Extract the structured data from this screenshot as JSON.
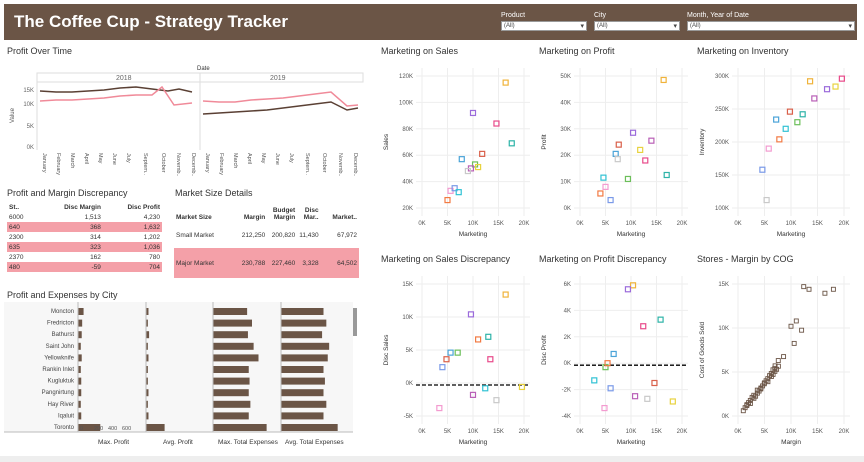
{
  "header": {
    "title": "The Coffee Cup - Strategy Tracker",
    "filters": [
      {
        "label": "Product",
        "value": "(All)"
      },
      {
        "label": "City",
        "value": "(All)"
      },
      {
        "label": "Month, Year of Date",
        "value": "(All)"
      }
    ]
  },
  "profit_over_time": {
    "title": "Profit Over Time",
    "column_header": "Date",
    "years": [
      "2018",
      "2019"
    ],
    "ylabel": "Value",
    "yticks": [
      "15K",
      "10K",
      "5K",
      "0K"
    ],
    "months": [
      "January",
      "February",
      "March",
      "April",
      "May",
      "June",
      "July",
      "Septem..",
      "October",
      "Novemb..",
      "Decemb.."
    ]
  },
  "discrepancy_table": {
    "title": "Profit and Margin Discrepancy",
    "headers": [
      "St..",
      "Disc Margin",
      "Disc Profit"
    ],
    "rows": [
      {
        "st": "6000",
        "margin": "1,513",
        "profit": "4,230",
        "hl": false
      },
      {
        "st": "640",
        "margin": "368",
        "profit": "1,632",
        "hl": true
      },
      {
        "st": "2300",
        "margin": "314",
        "profit": "1,202",
        "hl": false
      },
      {
        "st": "635",
        "margin": "323",
        "profit": "1,036",
        "hl": true
      },
      {
        "st": "2370",
        "margin": "162",
        "profit": "780",
        "hl": false
      },
      {
        "st": "480",
        "margin": "-59",
        "profit": "704",
        "hl": true
      }
    ]
  },
  "market_size": {
    "title": "Market Size Details",
    "headers": [
      "Market Size",
      "Margin",
      "Budget Margin",
      "Disc Mar..",
      "Market.."
    ],
    "rows": [
      {
        "name": "Small Market",
        "margin": "212,250",
        "budget": "200,820",
        "disc": "11,430",
        "market": "67,972",
        "hl": false
      },
      {
        "name": "Major Market",
        "margin": "230,788",
        "budget": "227,460",
        "disc": "3,328",
        "market": "64,502",
        "hl": true
      }
    ]
  },
  "city_chart": {
    "title": "Profit and Expenses by City",
    "cities": [
      "Moncton",
      "Fredricton",
      "Bathurst",
      "Saint John",
      "Yellowknife",
      "Rankin Inlet",
      "Kugluktuk",
      "Pangnirtung",
      "Hay River",
      "Iqaluit",
      "Toronto"
    ],
    "columns": [
      "Max. Profit",
      "Avg. Profit",
      "Max. Total Expenses",
      "Avg. Total Expenses"
    ],
    "max_profit_ticks": [
      "0",
      "200",
      "400",
      "600"
    ],
    "max_profit": [
      60,
      45,
      40,
      30,
      40,
      30,
      35,
      35,
      30,
      35,
      240
    ],
    "avg_profit": [
      4,
      3,
      5,
      3,
      4,
      3,
      3,
      4,
      3,
      4,
      30
    ],
    "max_exp": [
      210,
      240,
      215,
      250,
      280,
      220,
      225,
      220,
      230,
      220,
      330
    ],
    "avg_exp": [
      300,
      320,
      290,
      340,
      330,
      300,
      310,
      300,
      320,
      300,
      400
    ]
  },
  "scatters": {
    "sales": {
      "title": "Marketing on Sales",
      "xlabel": "Marketing",
      "ylabel": "Sales",
      "yticks": [
        "120K",
        "100K",
        "80K",
        "60K",
        "40K",
        "20K"
      ],
      "xticks": [
        "0K",
        "5K",
        "10K",
        "15K",
        "20K"
      ]
    },
    "profit": {
      "title": "Marketing on Profit",
      "xlabel": "Marketing",
      "ylabel": "Profit",
      "yticks": [
        "50K",
        "40K",
        "30K",
        "20K",
        "10K",
        "0K"
      ],
      "xticks": [
        "0K",
        "5K",
        "10K",
        "15K",
        "20K"
      ]
    },
    "inventory": {
      "title": "Marketing on Inventory",
      "xlabel": "Marketing",
      "ylabel": "Inventory",
      "yticks": [
        "300K",
        "250K",
        "200K",
        "150K",
        "100K"
      ],
      "xticks": [
        "0K",
        "5K",
        "10K",
        "15K",
        "20K"
      ]
    },
    "sales_disc": {
      "title": "Marketing on Sales Discrepancy",
      "xlabel": "Marketing",
      "ylabel": "Disc Sales",
      "yticks": [
        "15K",
        "10K",
        "5K",
        "0K",
        "-5K"
      ],
      "xticks": [
        "0K",
        "5K",
        "10K",
        "15K",
        "20K"
      ]
    },
    "profit_disc": {
      "title": "Marketing on Profit Discrepancy",
      "xlabel": "Marketing",
      "ylabel": "Disc Profit",
      "yticks": [
        "6K",
        "4K",
        "2K",
        "0K",
        "-2K",
        "-4K"
      ],
      "xticks": [
        "0K",
        "5K",
        "10K",
        "15K",
        "20K"
      ]
    },
    "stores": {
      "title": "Stores - Margin by COG",
      "xlabel": "Margin",
      "ylabel": "Cost of Goods Sold",
      "yticks": [
        "15K",
        "10K",
        "5K",
        "0K"
      ],
      "xticks": [
        "0K",
        "5K",
        "10K",
        "15K",
        "20K"
      ]
    }
  },
  "colors": {
    "header": "#6b5546",
    "bar": "#6b5546",
    "highlight": "#f4a0a8",
    "line_profit": "#5a4034",
    "line_margin": "#f08a99"
  }
}
